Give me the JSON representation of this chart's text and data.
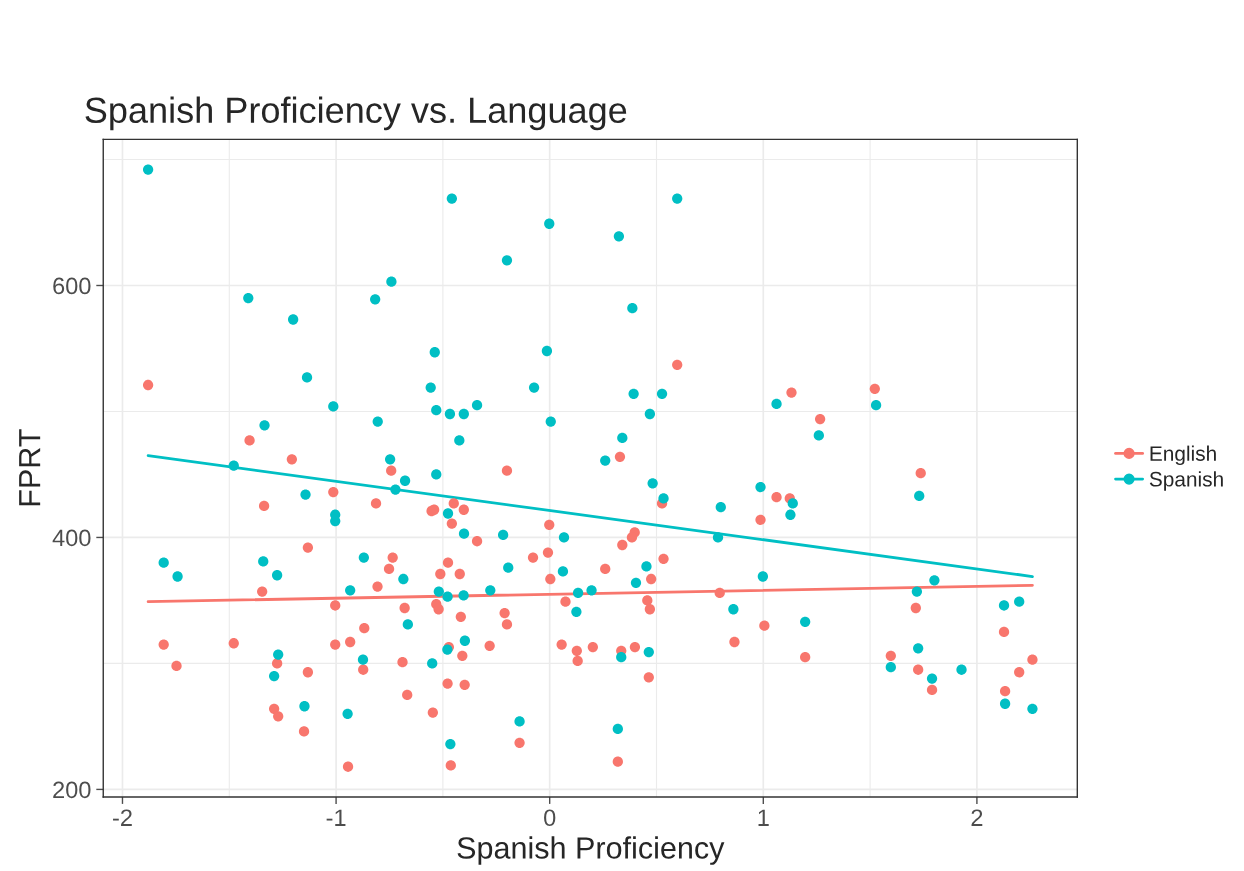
{
  "chart_data": {
    "type": "scatter",
    "title": "Spanish Proficiency vs. Language",
    "xlabel": "Spanish Proficiency",
    "ylabel": "FPRT",
    "xlim": [
      -2.09,
      2.47
    ],
    "xticks": [
      -2,
      -1,
      0,
      1,
      2
    ],
    "ylim": [
      194,
      716
    ],
    "yticks": [
      200,
      400,
      600
    ],
    "grid": true,
    "legend": "right",
    "marker": "circle",
    "series": [
      {
        "name": "English",
        "color": "#f8766d",
        "x": [
          -1.88,
          -1.405,
          -1.207,
          -0.742,
          -0.2,
          -1.013,
          -1.337,
          -0.813,
          -0.553,
          -0.541,
          -0.449,
          -0.402,
          -0.458,
          -0.34,
          -1.132,
          -0.735,
          -0.752,
          -0.476,
          -0.512,
          -0.421,
          -0.078,
          -1.346,
          -0.806,
          -1.004,
          -0.679,
          -0.531,
          -0.52,
          -0.416,
          -0.211,
          -0.2,
          -0.868,
          -1.807,
          -1.479,
          -1.004,
          -0.934,
          -1.747,
          -1.276,
          -1.132,
          -0.873,
          -0.689,
          -0.472,
          -0.409,
          -0.281,
          -0.478,
          -0.398,
          -0.667,
          -1.29,
          -1.271,
          -1.15,
          -0.547,
          -0.141,
          -0.944,
          -0.463,
          0.597,
          1.132,
          1.522,
          1.266,
          0.329,
          1.737,
          0.526,
          1.062,
          1.124,
          0.987,
          -0.002,
          -0.008,
          0.398,
          0.385,
          0.34,
          0.533,
          0.26,
          0.003,
          0.475,
          0.074,
          0.457,
          0.469,
          0.796,
          1.714,
          1.005,
          2.127,
          0.865,
          0.056,
          0.127,
          0.202,
          0.335,
          0.399,
          0.131,
          0.464,
          1.196,
          1.597,
          1.725,
          1.79,
          2.132,
          2.198,
          2.26,
          0.319
        ],
        "values": [
          521,
          477,
          462,
          453,
          453,
          436,
          425,
          427,
          421,
          422,
          427,
          422,
          411,
          397,
          392,
          384,
          375,
          380,
          371,
          371,
          384,
          357,
          361,
          346,
          344,
          347,
          343,
          337,
          340,
          331,
          328,
          315,
          316,
          315,
          317,
          298,
          300,
          293,
          295,
          301,
          313,
          306,
          314,
          284,
          283,
          275,
          264,
          258,
          246,
          261,
          237,
          218,
          219,
          537,
          515,
          518,
          494,
          464,
          451,
          427,
          432,
          431,
          414,
          410,
          388,
          404,
          400,
          394,
          383,
          375,
          367,
          367,
          349,
          350,
          343,
          356,
          344,
          330,
          325,
          317,
          315,
          310,
          313,
          310,
          313,
          302,
          289,
          305,
          306,
          295,
          279,
          278,
          293,
          303,
          222
        ]
      },
      {
        "name": "Spanish",
        "color": "#00bfc4",
        "x": [
          -1.88,
          -0.458,
          -0.2,
          -0.741,
          -1.411,
          -0.817,
          -1.201,
          -0.538,
          -1.136,
          -0.557,
          -0.073,
          -1.013,
          -0.531,
          -0.467,
          -0.402,
          -0.34,
          -0.805,
          -1.335,
          -0.423,
          -0.747,
          -1.479,
          -0.677,
          -0.531,
          -0.722,
          -1.143,
          -1.004,
          -1.004,
          -0.476,
          -0.401,
          -0.218,
          -0.194,
          -1.807,
          -1.742,
          -1.341,
          -1.276,
          -0.87,
          -0.685,
          -0.934,
          -0.519,
          -0.478,
          -0.403,
          -0.278,
          -0.664,
          -0.397,
          -0.479,
          -1.271,
          -0.874,
          -0.55,
          -1.29,
          -1.148,
          -0.946,
          -0.141,
          -0.465,
          0.597,
          -0.002,
          0.324,
          0.387,
          -0.013,
          0.393,
          0.526,
          0.469,
          0.005,
          1.062,
          1.528,
          1.26,
          0.34,
          0.26,
          0.482,
          0.533,
          0.801,
          0.987,
          1.138,
          1.127,
          1.73,
          0.067,
          0.788,
          0.062,
          0.453,
          0.404,
          0.998,
          0.133,
          0.196,
          0.125,
          0.86,
          1.801,
          1.719,
          1.196,
          2.127,
          2.198,
          0.335,
          0.464,
          1.725,
          1.597,
          1.79,
          1.928,
          2.132,
          2.26,
          0.319
        ],
        "values": [
          692,
          669,
          620,
          603,
          590,
          589,
          573,
          547,
          527,
          519,
          519,
          504,
          501,
          498,
          498,
          505,
          492,
          489,
          477,
          462,
          457,
          445,
          450,
          438,
          434,
          418,
          413,
          419,
          403,
          402,
          376,
          380,
          369,
          381,
          370,
          384,
          367,
          358,
          357,
          353,
          354,
          358,
          331,
          318,
          311,
          307,
          303,
          300,
          290,
          266,
          260,
          254,
          236,
          669,
          649,
          639,
          582,
          548,
          514,
          514,
          498,
          492,
          506,
          505,
          481,
          479,
          461,
          443,
          431,
          424,
          440,
          427,
          418,
          433,
          400,
          400,
          373,
          377,
          364,
          369,
          356,
          358,
          341,
          343,
          366,
          357,
          333,
          346,
          349,
          305,
          309,
          312,
          297,
          288,
          295,
          268,
          264,
          248
        ]
      },
      {
        "color": "#f8766d",
        "type": "line",
        "marker": "none",
        "x": [
          -1.88,
          2.26
        ],
        "values": [
          349,
          362
        ]
      },
      {
        "color": "#00bfc4",
        "type": "line",
        "marker": "none",
        "x": [
          -1.88,
          2.26
        ],
        "values": [
          465,
          369
        ]
      }
    ]
  }
}
